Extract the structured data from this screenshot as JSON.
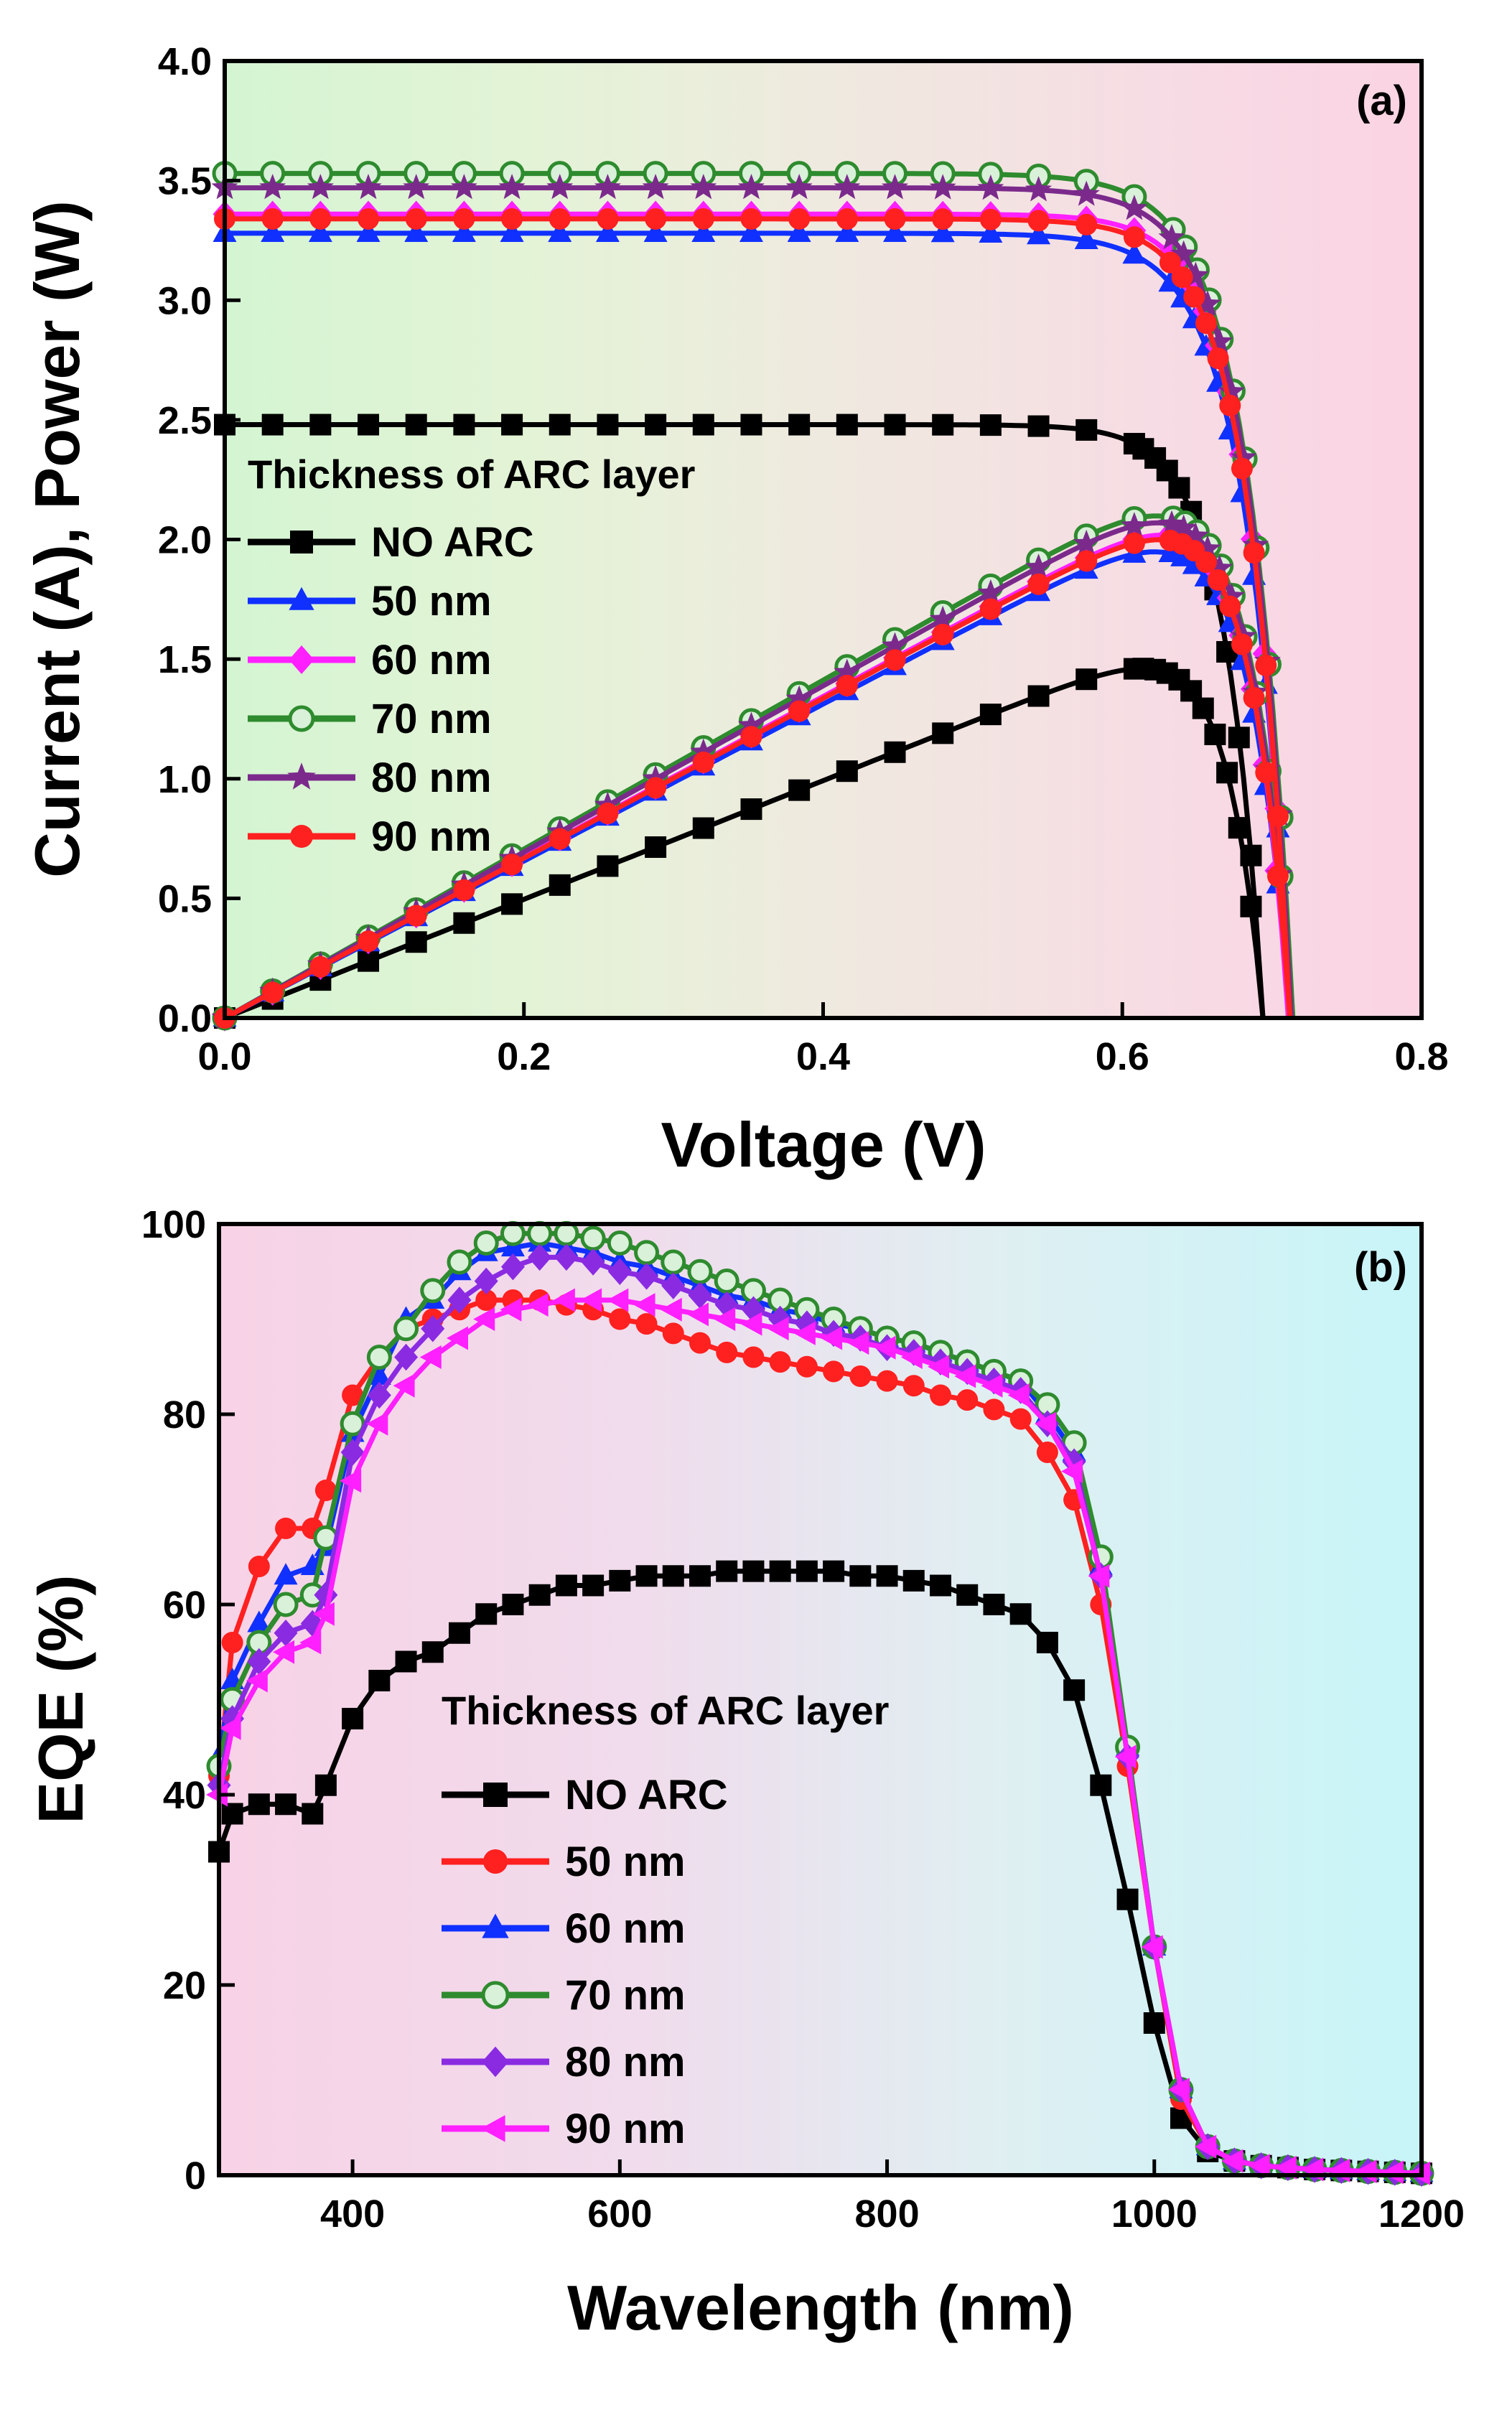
{
  "chart_data": [
    {
      "panel_label": "(a)",
      "type": "line",
      "xlabel": "Voltage (V)",
      "ylabel": "Current (A), Power (W)",
      "xlim": [
        0.0,
        0.8
      ],
      "ylim": [
        0.0,
        4.0
      ],
      "xticks": [
        "0.0",
        "0.2",
        "0.4",
        "0.6",
        "0.8"
      ],
      "yticks": [
        "0.0",
        "0.5",
        "1.0",
        "1.5",
        "2.0",
        "2.5",
        "3.0",
        "3.5",
        "4.0"
      ],
      "legend_title": "Thickness of ARC layer",
      "series": [
        {
          "name": "NO ARC",
          "color": "#000000",
          "marker": "square",
          "isc": 2.48,
          "voc": 0.694,
          "pmax": 1.46
        },
        {
          "name": "50 nm",
          "color": "#1030ff",
          "marker": "triangle",
          "isc": 3.28,
          "voc": 0.712,
          "pmax": 1.95
        },
        {
          "name": "60 nm",
          "color": "#ff20ff",
          "marker": "diamond",
          "isc": 3.36,
          "voc": 0.711,
          "pmax": 2.02
        },
        {
          "name": "70 nm",
          "color": "#2e8b2e",
          "marker": "circle-open",
          "isc": 3.53,
          "voc": 0.714,
          "pmax": 2.1
        },
        {
          "name": "80 nm",
          "color": "#7b2a8c",
          "marker": "star",
          "isc": 3.47,
          "voc": 0.713,
          "pmax": 2.07
        },
        {
          "name": "90 nm",
          "color": "#ff2020",
          "marker": "circle",
          "isc": 3.34,
          "voc": 0.712,
          "pmax": 2.0
        }
      ]
    },
    {
      "panel_label": "(b)",
      "type": "line",
      "xlabel": "Wavelength (nm)",
      "ylabel": "EQE (%)",
      "xlim": [
        300,
        1200
      ],
      "ylim": [
        0,
        100
      ],
      "xticks": [
        "400",
        "600",
        "800",
        "1000",
        "1200"
      ],
      "yticks": [
        "0",
        "20",
        "40",
        "60",
        "80",
        "100"
      ],
      "legend_title": "Thickness of ARC layer",
      "x": [
        300,
        310,
        330,
        350,
        370,
        380,
        400,
        420,
        440,
        460,
        480,
        500,
        520,
        540,
        560,
        580,
        600,
        620,
        640,
        660,
        680,
        700,
        720,
        740,
        760,
        780,
        800,
        820,
        840,
        860,
        880,
        900,
        920,
        940,
        960,
        980,
        1000,
        1020,
        1040,
        1060,
        1080,
        1100,
        1120,
        1140,
        1160,
        1180,
        1200
      ],
      "series": [
        {
          "name": "NO ARC",
          "color": "#000000",
          "marker": "square",
          "values": [
            34,
            38,
            39,
            39,
            38,
            41,
            48,
            52,
            54,
            55,
            57,
            59,
            60,
            61,
            62,
            62,
            62.5,
            63,
            63,
            63,
            63.5,
            63.5,
            63.5,
            63.5,
            63.5,
            63,
            63,
            62.5,
            62,
            61,
            60,
            59,
            56,
            51,
            41,
            29,
            16,
            6,
            2.5,
            1.5,
            1,
            0.8,
            0.6,
            0.5,
            0.4,
            0.3,
            0.2
          ]
        },
        {
          "name": "50 nm",
          "color": "#ff2020",
          "marker": "circle",
          "values": [
            42,
            56,
            64,
            68,
            68,
            72,
            82,
            86,
            89,
            90,
            91,
            92,
            92,
            92,
            91.5,
            91,
            90,
            89.5,
            88.5,
            87.5,
            86.5,
            86,
            85.5,
            85,
            84.5,
            84,
            83.5,
            83,
            82,
            81.5,
            80.5,
            79.5,
            76,
            71,
            60,
            43,
            24,
            8,
            3,
            1.5,
            1,
            0.8,
            0.6,
            0.5,
            0.4,
            0.3,
            0.2
          ]
        },
        {
          "name": "60 nm",
          "color": "#1030ff",
          "marker": "triangle",
          "values": [
            44,
            52,
            58,
            63,
            64,
            66,
            78,
            84,
            90,
            92,
            95,
            97,
            97.5,
            98,
            97.5,
            97,
            96,
            95.5,
            94.5,
            93.5,
            92.5,
            92,
            91,
            90.5,
            89.5,
            89,
            88,
            87.5,
            86.5,
            85.5,
            84.5,
            83.5,
            80,
            76,
            64,
            45,
            24,
            9,
            3,
            1.5,
            1,
            0.8,
            0.6,
            0.5,
            0.4,
            0.3,
            0.2
          ]
        },
        {
          "name": "70 nm",
          "color": "#2e8b2e",
          "marker": "circle-open",
          "values": [
            43,
            50,
            56,
            60,
            61,
            67,
            79,
            86,
            89,
            93,
            96,
            98,
            99,
            99,
            99,
            98.5,
            98,
            97,
            96,
            95,
            94,
            93,
            92,
            91,
            90,
            89,
            88,
            87.5,
            86.5,
            85.5,
            84.5,
            83.5,
            81,
            77,
            65,
            45,
            24,
            9,
            3,
            1.5,
            1,
            0.8,
            0.6,
            0.5,
            0.4,
            0.3,
            0.2
          ]
        },
        {
          "name": "80 nm",
          "color": "#8a2be2",
          "marker": "diamond",
          "values": [
            41,
            48,
            54,
            57,
            58,
            61,
            76,
            82,
            86,
            89,
            92,
            94,
            95.5,
            96.5,
            96.5,
            96,
            95,
            94.5,
            93.5,
            92.5,
            91.5,
            91,
            90,
            89.5,
            88.5,
            88,
            87,
            86.5,
            85.5,
            84.5,
            83.5,
            82.5,
            79,
            75,
            63,
            44,
            24,
            9,
            3,
            1.5,
            1,
            0.8,
            0.6,
            0.5,
            0.4,
            0.3,
            0.2
          ]
        },
        {
          "name": "90 nm",
          "color": "#ff20ff",
          "marker": "triangle-left",
          "values": [
            40,
            47,
            52,
            55,
            56,
            59,
            73,
            79,
            83,
            86,
            88,
            90,
            91,
            91.5,
            92,
            92,
            92,
            91.5,
            91,
            90.5,
            90,
            89.5,
            89,
            88.5,
            88,
            87.5,
            87,
            86,
            85,
            84,
            83,
            82,
            79,
            74,
            63,
            44,
            24,
            9,
            3,
            1.5,
            1,
            0.8,
            0.6,
            0.5,
            0.4,
            0.3,
            0.2
          ]
        }
      ]
    }
  ]
}
